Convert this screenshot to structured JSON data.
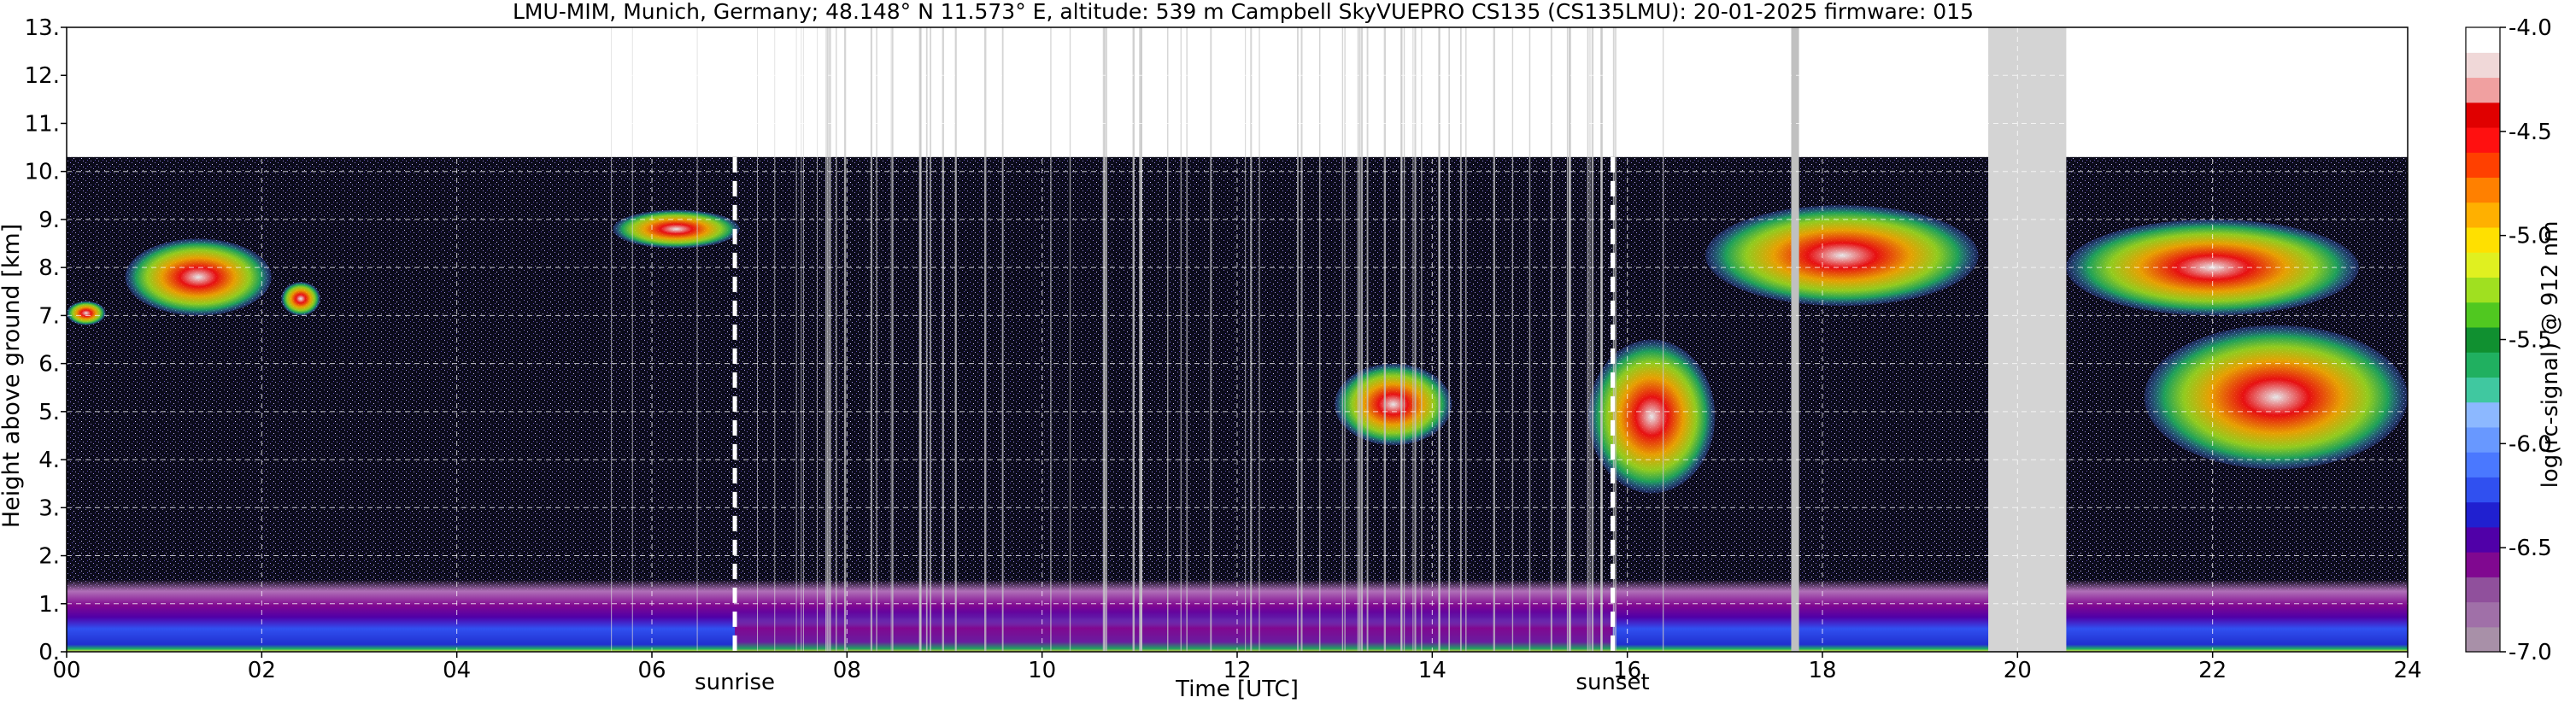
{
  "chart_data": {
    "type": "heatmap",
    "title": "LMU-MIM, Munich, Germany; 48.148° N 11.573° E, altitude: 539 m    Campbell SkyVUEPRO CS135 (CS135LMU): 20-01-2025    firmware: 015",
    "xlabel": "Time [UTC]",
    "ylabel": "Height above ground [km]",
    "xlim": [
      0,
      24
    ],
    "ylim": [
      0,
      13
    ],
    "data_top_km": 10.3,
    "x_ticks": [
      "00",
      "02",
      "04",
      "06",
      "08",
      "10",
      "12",
      "14",
      "16",
      "18",
      "20",
      "22",
      "24"
    ],
    "y_ticks": [
      "0.",
      "1.",
      "2.",
      "3.",
      "4.",
      "5.",
      "6.",
      "7.",
      "8.",
      "9.",
      "10.",
      "11.",
      "12.",
      "13."
    ],
    "grid": true,
    "annotations": [
      {
        "label": "sunrise",
        "x": 6.85
      },
      {
        "label": "sunset",
        "x": 15.85
      }
    ],
    "missing_data_intervals": [
      [
        19.7,
        20.5
      ]
    ],
    "colorbar": {
      "label": "log(rc-signal) @ 912 nm",
      "range": [
        -7.0,
        -4.0
      ],
      "ticks": [
        "-4.0",
        "-4.5",
        "-5.0",
        "-5.5",
        "-6.0",
        "-6.5",
        "-7.0"
      ],
      "colors": [
        "#a890a8",
        "#a070a8",
        "#90509c",
        "#800890",
        "#5000a8",
        "#2020d0",
        "#3050f0",
        "#4a78ff",
        "#6898ff",
        "#8cb8ff",
        "#40c8a0",
        "#20b060",
        "#109030",
        "#50c820",
        "#a0e020",
        "#e0f020",
        "#ffe000",
        "#ffb000",
        "#ff8000",
        "#ff4000",
        "#ff1010",
        "#e00000",
        "#f0a0a0",
        "#f0d8d8",
        "#ffffff"
      ]
    },
    "features": [
      {
        "name": "boundary layer aerosol",
        "x": [
          0,
          24
        ],
        "y": [
          0.0,
          1.5
        ]
      },
      {
        "name": "cloud",
        "x": [
          0.0,
          0.4
        ],
        "y": [
          6.8,
          7.3
        ]
      },
      {
        "name": "cloud",
        "x": [
          0.6,
          2.1
        ],
        "y": [
          7.0,
          8.6
        ]
      },
      {
        "name": "cloud",
        "x": [
          2.2,
          2.6
        ],
        "y": [
          7.0,
          7.7
        ]
      },
      {
        "name": "cloud",
        "x": [
          5.6,
          6.9
        ],
        "y": [
          8.4,
          9.2
        ]
      },
      {
        "name": "cloud",
        "x": [
          13.0,
          14.2
        ],
        "y": [
          4.3,
          6.0
        ]
      },
      {
        "name": "cloud",
        "x": [
          15.6,
          16.9
        ],
        "y": [
          3.3,
          6.5
        ]
      },
      {
        "name": "cloud",
        "x": [
          16.8,
          19.6
        ],
        "y": [
          7.2,
          9.3
        ]
      },
      {
        "name": "cloud",
        "x": [
          20.5,
          23.5
        ],
        "y": [
          7.0,
          9.0
        ]
      },
      {
        "name": "cloud",
        "x": [
          21.3,
          24.0
        ],
        "y": [
          3.8,
          6.8
        ]
      }
    ]
  }
}
